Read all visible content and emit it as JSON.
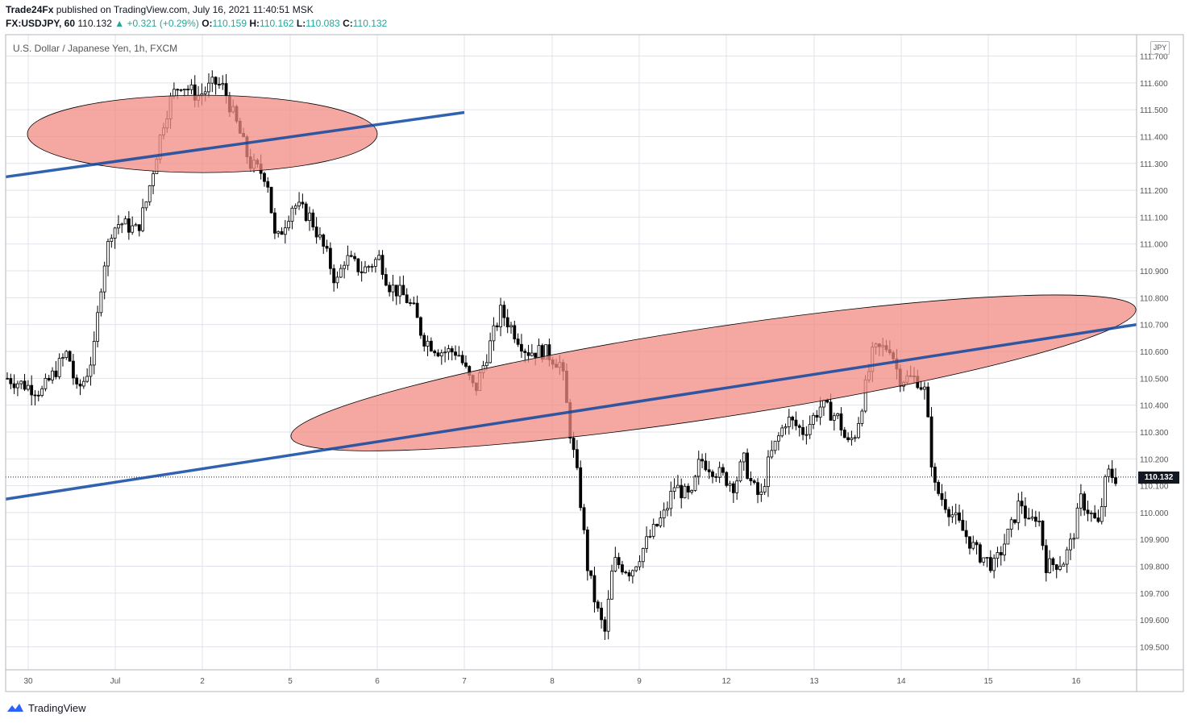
{
  "header": {
    "publisher": "Trade24Fx",
    "published_text": "published on TradingView.com, July 16, 2021 11:40:51 MSK",
    "symbol": "FX:USDJPY, 60",
    "last": "110.132",
    "change": "▲ +0.321 (+0.29%)",
    "o_label": "O:",
    "o_value": "110.159",
    "h_label": "H:",
    "h_value": "110.162",
    "l_label": "L:",
    "l_value": "110.083",
    "c_label": "C:",
    "c_value": "110.132"
  },
  "pane_title": "U.S. Dollar / Japanese Yen, 1h, FXCM",
  "currency_badge": "JPY",
  "current_price_label": "110.132",
  "footer": {
    "brand": "TradingView"
  },
  "colors": {
    "up": "#26a69a",
    "candle": "#000000",
    "trendline": "#0d47a1",
    "ellipse_fill": "#f28b82",
    "grid": "#e0e3eb"
  },
  "chart_data": {
    "type": "candlestick",
    "title": "U.S. Dollar / Japanese Yen, 1h, FXCM",
    "ylabel": "",
    "ylim": [
      109.45,
      111.72
    ],
    "y_ticks": [
      "111.700",
      "111.600",
      "111.500",
      "111.400",
      "111.300",
      "111.200",
      "111.100",
      "111.000",
      "110.900",
      "110.800",
      "110.700",
      "110.600",
      "110.500",
      "110.400",
      "110.300",
      "110.200",
      "110.100",
      "110.000",
      "109.900",
      "109.800",
      "109.700",
      "109.600",
      "109.500"
    ],
    "x_ticks": [
      "30",
      "Jul",
      "2",
      "5",
      "6",
      "7",
      "8",
      "9",
      "12",
      "13",
      "14",
      "15",
      "16"
    ],
    "current_price": 110.132,
    "price_path": [
      [
        0,
        110.5
      ],
      [
        4,
        110.45
      ],
      [
        7,
        110.6
      ],
      [
        8,
        110.45
      ],
      [
        9,
        110.5
      ],
      [
        10,
        110.6
      ],
      [
        11,
        110.9
      ],
      [
        12,
        111.05
      ],
      [
        13,
        111.08
      ],
      [
        15,
        111.05
      ],
      [
        16,
        111.15
      ],
      [
        17,
        111.3
      ],
      [
        18,
        111.45
      ],
      [
        19,
        111.55
      ],
      [
        20,
        111.6
      ],
      [
        22,
        111.55
      ],
      [
        24,
        111.6
      ],
      [
        25,
        111.58
      ],
      [
        27,
        111.4
      ],
      [
        28,
        111.3
      ],
      [
        30,
        111.25
      ],
      [
        31,
        111.0
      ],
      [
        33,
        111.15
      ],
      [
        35,
        111.1
      ],
      [
        37,
        110.95
      ],
      [
        38,
        110.85
      ],
      [
        39,
        110.95
      ],
      [
        41,
        110.9
      ],
      [
        43,
        110.95
      ],
      [
        44,
        110.85
      ],
      [
        46,
        110.8
      ],
      [
        47,
        110.75
      ],
      [
        48,
        110.65
      ],
      [
        50,
        110.6
      ],
      [
        52,
        110.6
      ],
      [
        54,
        110.45
      ],
      [
        55,
        110.55
      ],
      [
        57,
        110.75
      ],
      [
        58,
        110.7
      ],
      [
        60,
        110.6
      ],
      [
        62,
        110.6
      ],
      [
        64,
        110.55
      ],
      [
        65,
        110.3
      ],
      [
        66,
        110.1
      ],
      [
        67,
        109.8
      ],
      [
        68,
        109.65
      ],
      [
        69,
        109.55
      ],
      [
        70,
        109.82
      ],
      [
        72,
        109.78
      ],
      [
        74,
        109.9
      ],
      [
        76,
        110.0
      ],
      [
        77,
        110.1
      ],
      [
        79,
        110.05
      ],
      [
        80,
        110.2
      ],
      [
        82,
        110.15
      ],
      [
        84,
        110.1
      ],
      [
        85,
        110.2
      ],
      [
        86,
        110.1
      ],
      [
        87,
        110.05
      ],
      [
        88,
        110.2
      ],
      [
        90,
        110.35
      ],
      [
        92,
        110.3
      ],
      [
        94,
        110.4
      ],
      [
        96,
        110.35
      ],
      [
        97,
        110.25
      ],
      [
        98,
        110.3
      ],
      [
        99,
        110.45
      ],
      [
        100,
        110.6
      ],
      [
        102,
        110.62
      ],
      [
        103,
        110.5
      ],
      [
        105,
        110.5
      ],
      [
        106,
        110.45
      ],
      [
        107,
        110.1
      ],
      [
        108,
        110.05
      ],
      [
        110,
        109.95
      ],
      [
        112,
        109.85
      ],
      [
        114,
        109.8
      ],
      [
        116,
        109.95
      ],
      [
        117,
        110.05
      ],
      [
        118,
        109.95
      ],
      [
        119,
        110.0
      ],
      [
        120,
        109.8
      ],
      [
        122,
        109.82
      ],
      [
        123,
        109.9
      ],
      [
        124,
        110.05
      ],
      [
        126,
        109.95
      ],
      [
        127,
        110.15
      ],
      [
        128,
        110.13
      ]
    ],
    "annotations": {
      "trendlines": [
        {
          "from": [
            "30",
            111.25
          ],
          "to": [
            "7",
            111.49
          ]
        },
        {
          "from": [
            "30",
            110.05
          ],
          "to": [
            "16",
            110.7
          ]
        }
      ],
      "highlight_zones": [
        {
          "center": [
            "2",
            111.41
          ],
          "label": ""
        },
        {
          "center": [
            "12",
            110.52
          ],
          "label": ""
        }
      ]
    }
  }
}
